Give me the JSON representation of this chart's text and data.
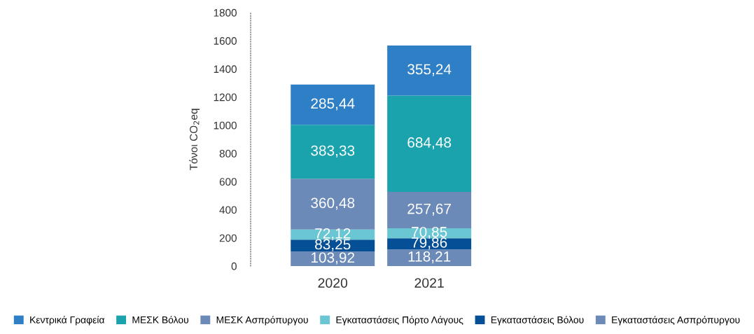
{
  "chart_data": {
    "type": "bar",
    "stacked": true,
    "ylabel": "Τόνοι CO$_{2}$eq",
    "categories": [
      "2020",
      "2021"
    ],
    "series": [
      {
        "name": "Εγκαταστάσεις Ασπρόπυργου",
        "color": "#6b8ab8",
        "values": [
          103.92,
          118.21
        ],
        "value_labels": [
          "103,92",
          "118,21"
        ]
      },
      {
        "name": "Εγκαταστάσεις Βόλου",
        "color": "#054f97",
        "values": [
          83.25,
          79.86
        ],
        "value_labels": [
          "83,25",
          "79,86"
        ]
      },
      {
        "name": "Εγκαταστάσεις Πόρτο Λάγους",
        "color": "#6ac6d3",
        "values": [
          72.12,
          70.85
        ],
        "value_labels": [
          "72,12",
          "70,85"
        ]
      },
      {
        "name": "ΜΕΣΚ Ασπρόπυργου",
        "color": "#6b8ab8",
        "values": [
          360.48,
          257.67
        ],
        "value_labels": [
          "360,48",
          "257,67"
        ]
      },
      {
        "name": "ΜΕΣΚ Βόλου",
        "color": "#1aa3ad",
        "values": [
          383.33,
          684.48
        ],
        "value_labels": [
          "383,33",
          "684,48"
        ]
      },
      {
        "name": "Κεντρικά Γραφεία",
        "color": "#2e7fc6",
        "values": [
          285.44,
          355.24
        ],
        "value_labels": [
          "285,44",
          "355,24"
        ]
      }
    ],
    "ylim": [
      0,
      1800
    ],
    "yticks": [
      0,
      200,
      400,
      600,
      800,
      1000,
      1200,
      1400,
      1600,
      1800
    ],
    "grid": false,
    "legend": "bottom"
  }
}
